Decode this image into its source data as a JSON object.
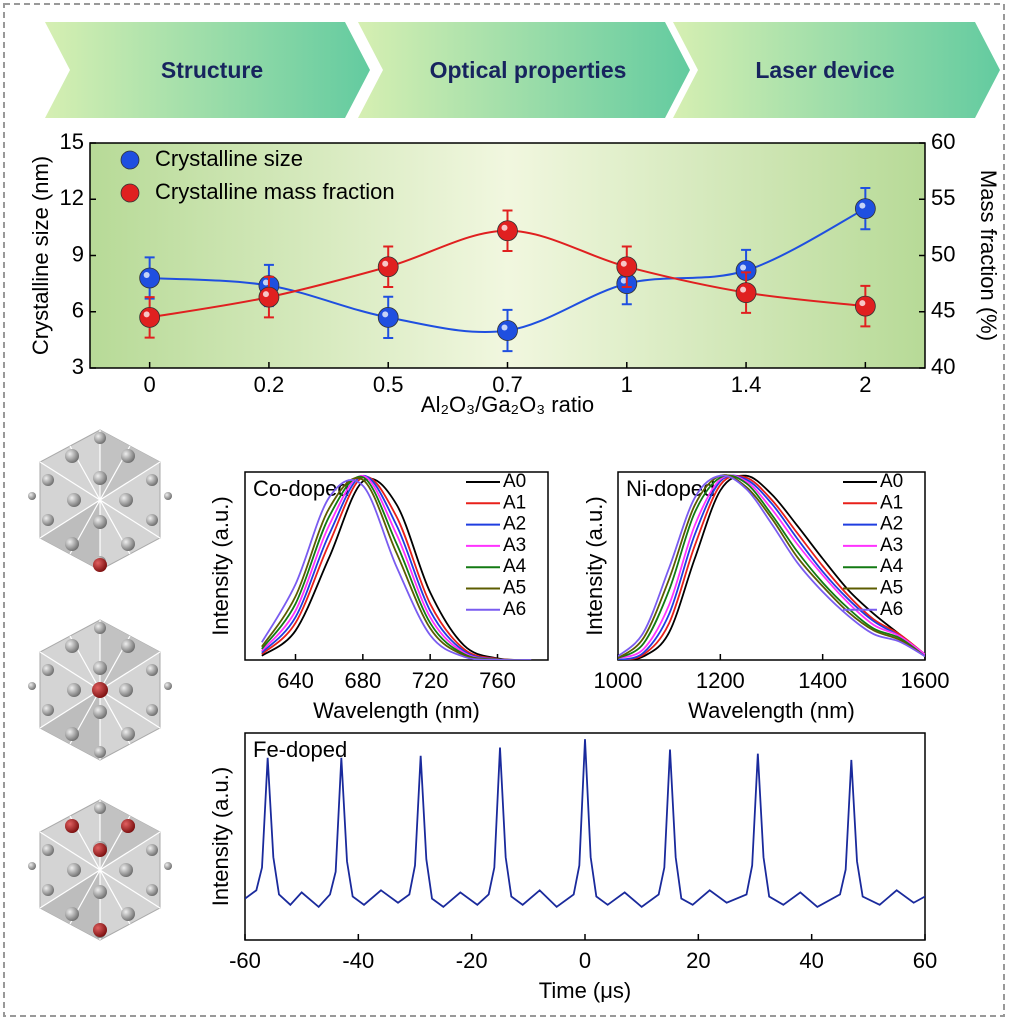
{
  "banner": {
    "items": [
      "Structure",
      "Optical properties",
      "Laser device"
    ]
  },
  "chart_data": [
    {
      "type": "scatter",
      "categories": [
        "0",
        "0.2",
        "0.5",
        "0.7",
        "1",
        "1.4",
        "2"
      ],
      "xlabel": "Al₂O₃/Ga₂O₃ ratio",
      "ylabel": "Crystalline size (nm)",
      "y2label": "Mass fraction (%)",
      "ylim": [
        3,
        15
      ],
      "yticks": [
        3,
        6,
        9,
        12,
        15
      ],
      "y2lim": [
        40,
        60
      ],
      "y2ticks": [
        40,
        45,
        50,
        55,
        60
      ],
      "legend": "upper left",
      "smooth": true,
      "series": [
        {
          "name": "Crystalline size",
          "color": "#1f4fe0",
          "values": [
            7.8,
            7.4,
            5.7,
            5.0,
            7.5,
            8.2,
            11.5
          ],
          "errors": [
            1.1,
            1.1,
            1.1,
            1.1,
            1.1,
            1.1,
            1.1
          ]
        },
        {
          "name": "Crystalline mass fraction",
          "color": "#e02020",
          "axis": "y2",
          "values": [
            44.5,
            46.3,
            49.0,
            52.2,
            49.0,
            46.7,
            45.5
          ],
          "errors": [
            1.8,
            1.8,
            1.8,
            1.8,
            1.8,
            1.8,
            1.8
          ]
        }
      ]
    },
    {
      "type": "line",
      "title": "Co-doped",
      "xlabel": "Wavelength (nm)",
      "ylabel": "Intensity (a.u.)",
      "xlim": [
        610,
        790
      ],
      "xticks": [
        640,
        680,
        720,
        760
      ],
      "ylim": [
        0,
        1.02
      ],
      "smooth": true,
      "legend": "upper right",
      "x": [
        620,
        640,
        660,
        680,
        700,
        720,
        740,
        760,
        780
      ],
      "series": [
        {
          "name": "A0",
          "color": "#000000",
          "values": [
            0.023,
            0.159,
            0.556,
            0.969,
            0.844,
            0.367,
            0.08,
            0.009,
            0.0
          ]
        },
        {
          "name": "A1",
          "color": "#e8201a",
          "values": [
            0.032,
            0.201,
            0.632,
            0.992,
            0.778,
            0.305,
            0.06,
            0.006,
            0.0
          ]
        },
        {
          "name": "A2",
          "color": "#1f3ee0",
          "values": [
            0.04,
            0.232,
            0.682,
            0.999,
            0.731,
            0.267,
            0.049,
            0.004,
            0.0
          ]
        },
        {
          "name": "A3",
          "color": "#ff33ff",
          "values": [
            0.049,
            0.267,
            0.731,
            0.999,
            0.682,
            0.232,
            0.04,
            0.003,
            0.0
          ]
        },
        {
          "name": "A4",
          "color": "#137a13",
          "values": [
            0.06,
            0.305,
            0.778,
            0.992,
            0.632,
            0.201,
            0.032,
            0.003,
            0.0
          ]
        },
        {
          "name": "A5",
          "color": "#5c5c00",
          "values": [
            0.072,
            0.345,
            0.823,
            0.978,
            0.581,
            0.172,
            0.026,
            0.002,
            0.0
          ]
        },
        {
          "name": "A6",
          "color": "#7a5cf0",
          "values": [
            0.096,
            0.411,
            0.882,
            0.946,
            0.506,
            0.135,
            0.018,
            0.001,
            0.0
          ]
        }
      ]
    },
    {
      "type": "line",
      "title": "Ni-doped",
      "xlabel": "Wavelength (nm)",
      "ylabel": "Intensity (a.u.)",
      "xlim": [
        1000,
        1600
      ],
      "xticks": [
        1000,
        1200,
        1400,
        1600
      ],
      "ylim": [
        0,
        1.02
      ],
      "smooth": true,
      "legend": "upper right",
      "x": [
        1000,
        1050,
        1100,
        1150,
        1200,
        1250,
        1300,
        1350,
        1400,
        1450,
        1500,
        1550,
        1600
      ],
      "series": [
        {
          "name": "A0",
          "color": "#000000",
          "values": [
            0.0,
            0.02,
            0.15,
            0.55,
            0.92,
            1.0,
            0.9,
            0.73,
            0.55,
            0.38,
            0.25,
            0.14,
            0.03
          ]
        },
        {
          "name": "A1",
          "color": "#e8201a",
          "values": [
            0.0,
            0.03,
            0.2,
            0.62,
            0.95,
            0.99,
            0.87,
            0.69,
            0.51,
            0.35,
            0.22,
            0.14,
            0.03
          ]
        },
        {
          "name": "A2",
          "color": "#1f3ee0",
          "values": [
            0.0,
            0.04,
            0.25,
            0.68,
            0.97,
            0.98,
            0.85,
            0.66,
            0.48,
            0.33,
            0.21,
            0.13,
            0.03
          ]
        },
        {
          "name": "A3",
          "color": "#ff33ff",
          "values": [
            0.01,
            0.06,
            0.3,
            0.73,
            0.98,
            0.97,
            0.82,
            0.63,
            0.46,
            0.31,
            0.19,
            0.13,
            0.03
          ]
        },
        {
          "name": "A4",
          "color": "#137a13",
          "values": [
            0.01,
            0.09,
            0.38,
            0.8,
            0.99,
            0.96,
            0.79,
            0.59,
            0.42,
            0.28,
            0.17,
            0.12,
            0.02
          ]
        },
        {
          "name": "A5",
          "color": "#5c5c00",
          "values": [
            0.01,
            0.12,
            0.44,
            0.84,
            1.0,
            0.94,
            0.77,
            0.56,
            0.4,
            0.26,
            0.16,
            0.11,
            0.02
          ]
        },
        {
          "name": "A6",
          "color": "#7a5cf0",
          "values": [
            0.02,
            0.15,
            0.5,
            0.88,
            1.0,
            0.93,
            0.74,
            0.53,
            0.37,
            0.24,
            0.14,
            0.1,
            0.02
          ]
        }
      ]
    },
    {
      "type": "line",
      "title": "Fe-doped",
      "xlabel": "Time (μs)",
      "ylabel": "Intensity (a.u.)",
      "xlim": [
        -60,
        60
      ],
      "xticks": [
        -60,
        -40,
        -20,
        0,
        20,
        40,
        60
      ],
      "ylim": [
        0,
        1
      ],
      "smooth": false,
      "x": [
        -60,
        -58,
        -57,
        -56,
        -55,
        -54,
        -52,
        -50,
        -47,
        -45,
        -44,
        -43,
        -42,
        -41,
        -39,
        -36,
        -33,
        -31,
        -30,
        -29,
        -28,
        -27,
        -25,
        -22,
        -19,
        -17,
        -16,
        -15,
        -14,
        -13,
        -11,
        -8,
        -5,
        -2,
        -1,
        0,
        1,
        2,
        4,
        7,
        10,
        13,
        14,
        15,
        16,
        17,
        19,
        22,
        25,
        28.5,
        29.5,
        30.5,
        31.5,
        32.5,
        35,
        38,
        41,
        45,
        46,
        47,
        48,
        49,
        52,
        55,
        58,
        60
      ],
      "series": [
        {
          "name": null,
          "color": "#1a2a9c",
          "values": [
            0.2,
            0.24,
            0.35,
            0.88,
            0.4,
            0.22,
            0.17,
            0.23,
            0.16,
            0.22,
            0.33,
            0.88,
            0.38,
            0.21,
            0.17,
            0.24,
            0.18,
            0.22,
            0.36,
            0.89,
            0.39,
            0.2,
            0.16,
            0.23,
            0.17,
            0.22,
            0.35,
            0.93,
            0.4,
            0.21,
            0.17,
            0.24,
            0.16,
            0.22,
            0.36,
            0.97,
            0.4,
            0.21,
            0.17,
            0.23,
            0.16,
            0.22,
            0.35,
            0.92,
            0.4,
            0.2,
            0.17,
            0.24,
            0.18,
            0.22,
            0.36,
            0.9,
            0.4,
            0.21,
            0.17,
            0.23,
            0.16,
            0.22,
            0.34,
            0.87,
            0.38,
            0.21,
            0.17,
            0.24,
            0.18,
            0.21
          ]
        }
      ]
    }
  ]
}
